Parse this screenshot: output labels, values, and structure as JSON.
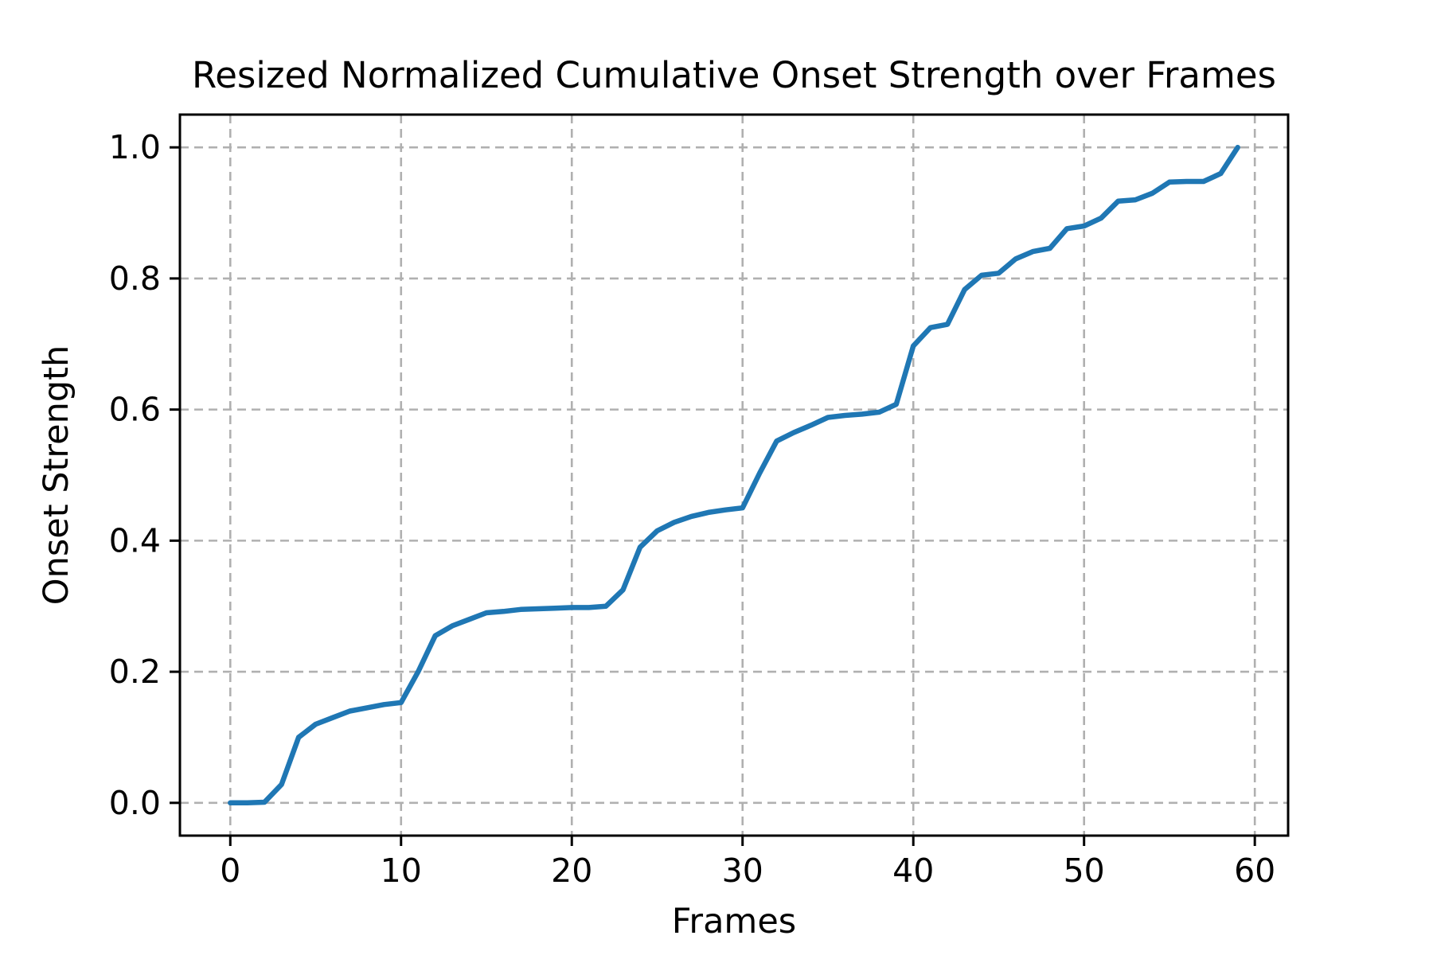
{
  "chart_data": {
    "type": "line",
    "title": "Resized Normalized Cumulative Onset Strength over Frames",
    "xlabel": "Frames",
    "ylabel": "Onset Strength",
    "x": [
      0,
      1,
      2,
      3,
      4,
      5,
      6,
      7,
      8,
      9,
      10,
      11,
      12,
      13,
      14,
      15,
      16,
      17,
      18,
      19,
      20,
      21,
      22,
      23,
      24,
      25,
      26,
      27,
      28,
      29,
      30,
      31,
      32,
      33,
      34,
      35,
      36,
      37,
      38,
      39,
      40,
      41,
      42,
      43,
      44,
      45,
      46,
      47,
      48,
      49,
      50,
      51,
      52,
      53,
      54,
      55,
      56,
      57,
      58,
      59
    ],
    "y": [
      0.0,
      0.0,
      0.001,
      0.028,
      0.1,
      0.12,
      0.13,
      0.14,
      0.145,
      0.15,
      0.153,
      0.2,
      0.255,
      0.27,
      0.28,
      0.29,
      0.292,
      0.295,
      0.296,
      0.297,
      0.298,
      0.298,
      0.3,
      0.325,
      0.39,
      0.415,
      0.428,
      0.437,
      0.443,
      0.447,
      0.45,
      0.503,
      0.552,
      0.565,
      0.576,
      0.588,
      0.591,
      0.593,
      0.596,
      0.608,
      0.697,
      0.725,
      0.73,
      0.783,
      0.805,
      0.808,
      0.83,
      0.841,
      0.846,
      0.876,
      0.88,
      0.892,
      0.918,
      0.92,
      0.93,
      0.947,
      0.948,
      0.948,
      0.96,
      1.0
    ],
    "xticks": [
      0,
      10,
      20,
      30,
      40,
      50,
      60
    ],
    "xtick_labels": [
      "0",
      "10",
      "20",
      "30",
      "40",
      "50",
      "60"
    ],
    "yticks": [
      0.0,
      0.2,
      0.4,
      0.6,
      0.8,
      1.0
    ],
    "ytick_labels": [
      "0.0",
      "0.2",
      "0.4",
      "0.6",
      "0.8",
      "1.0"
    ],
    "xlim": [
      -2.95,
      61.95
    ],
    "ylim": [
      -0.05,
      1.05
    ],
    "grid": true,
    "grid_style": "dashed",
    "legend_position": "none",
    "line_color": "#1f77b4",
    "grid_color": "#b0b0b0",
    "spine_color": "#000000",
    "background_color": "#ffffff"
  }
}
